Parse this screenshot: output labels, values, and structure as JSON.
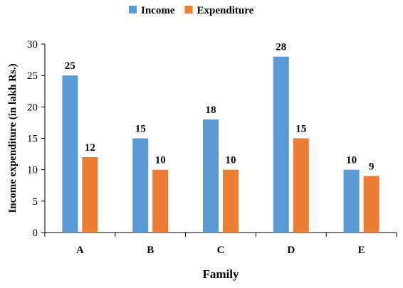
{
  "chart_data": {
    "type": "bar",
    "xlabel": "Family",
    "ylabel": "Income expenditure (in lakh Rs.)",
    "categories": [
      "A",
      "B",
      "C",
      "D",
      "E"
    ],
    "series": [
      {
        "name": "Income",
        "color": "#5B9BD5",
        "values": [
          25,
          15,
          18,
          28,
          10
        ]
      },
      {
        "name": "Expenditure",
        "color": "#ED7D31",
        "values": [
          12,
          10,
          10,
          15,
          9
        ]
      }
    ],
    "ylim": [
      0,
      30
    ],
    "yticks": [
      0,
      5,
      10,
      15,
      20,
      25,
      30
    ],
    "grid": false,
    "legend_position": "top-center",
    "data_labels": true
  }
}
